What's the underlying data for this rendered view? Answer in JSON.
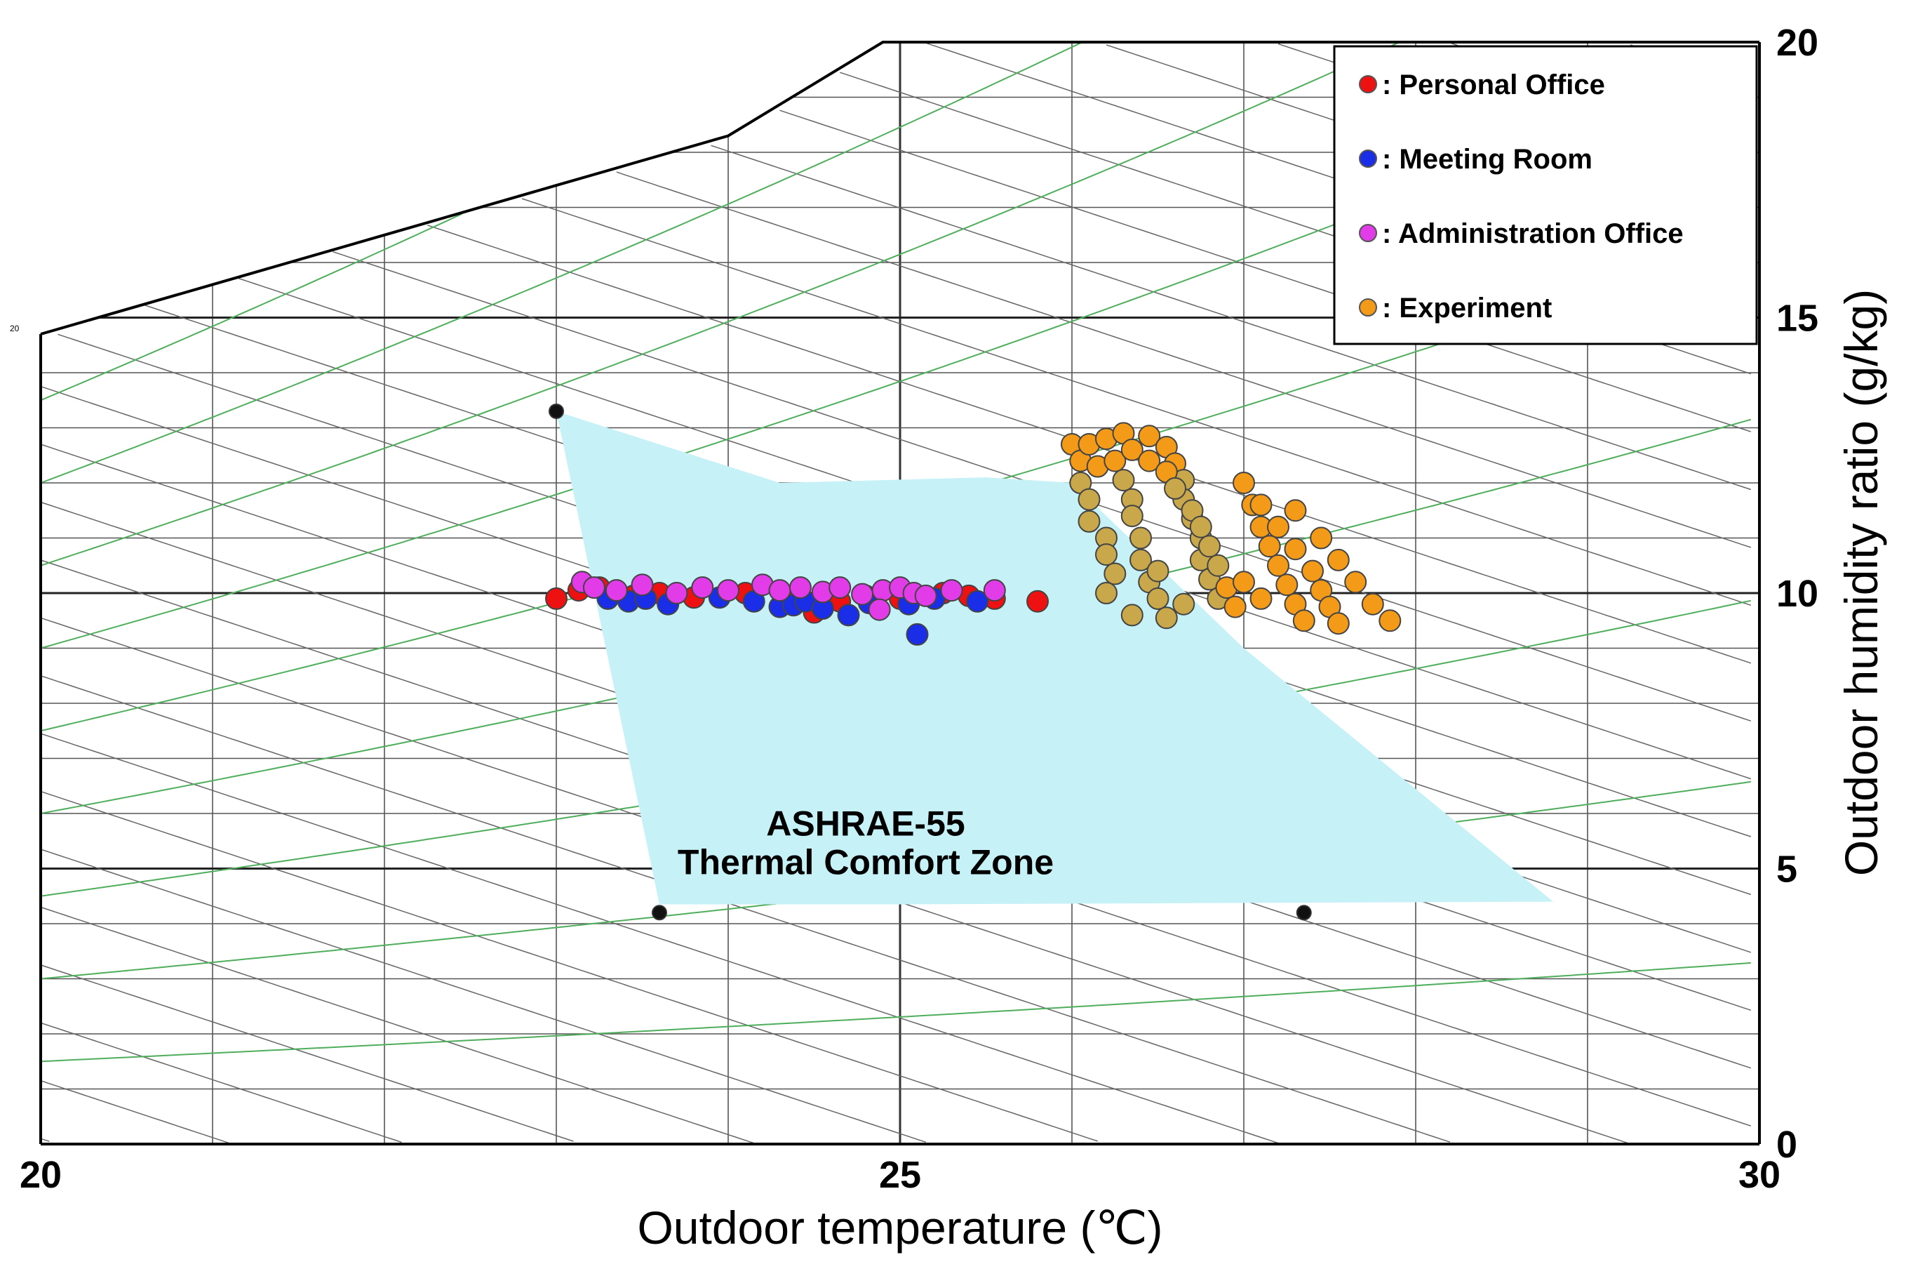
{
  "chart_data": {
    "type": "scatter",
    "chart_kind": "psychrometric",
    "xlabel": "Outdoor temperature (℃)",
    "ylabel": "Outdoor humidity ratio (g/kg)",
    "xlim": [
      20,
      30
    ],
    "ylim": [
      0,
      20
    ],
    "x_ticks": [
      "20",
      "25",
      "30"
    ],
    "y_ticks": [
      "0",
      "5",
      "10",
      "15",
      "20"
    ],
    "corner_label": "20",
    "grid": true,
    "legend_position": "top-right",
    "saturation_curve": [
      [
        20,
        14.7
      ],
      [
        21,
        15.6
      ],
      [
        22,
        16.5
      ],
      [
        23,
        17.4
      ],
      [
        24,
        18.3
      ],
      [
        24.9,
        20
      ]
    ],
    "comfort_zone": {
      "label_line1": "ASHRAE-55",
      "label_line2": "Thermal Comfort Zone",
      "color": "#c6f1f7",
      "vertices": [
        [
          23.0,
          13.3
        ],
        [
          24.3,
          12.0
        ],
        [
          25.5,
          12.1
        ],
        [
          26.0,
          12.0
        ],
        [
          27.0,
          9.0
        ],
        [
          28.8,
          4.4
        ],
        [
          25.0,
          4.35
        ],
        [
          24.2,
          4.35
        ],
        [
          23.6,
          4.35
        ]
      ],
      "corner_markers": [
        [
          23.0,
          13.3
        ],
        [
          23.6,
          4.2
        ],
        [
          27.35,
          4.2
        ]
      ]
    },
    "series": [
      {
        "name": ": Personal Office",
        "color": "#ee1111",
        "points": [
          [
            23.0,
            9.9
          ],
          [
            23.13,
            10.05
          ],
          [
            23.25,
            10.1
          ],
          [
            23.45,
            9.95
          ],
          [
            23.6,
            10.0
          ],
          [
            23.8,
            9.92
          ],
          [
            24.1,
            10.0
          ],
          [
            24.35,
            9.92
          ],
          [
            24.5,
            9.65
          ],
          [
            24.65,
            9.85
          ],
          [
            24.8,
            9.95
          ],
          [
            25.0,
            9.9
          ],
          [
            25.25,
            10.0
          ],
          [
            25.4,
            9.95
          ],
          [
            25.55,
            9.9
          ],
          [
            25.8,
            9.85
          ]
        ]
      },
      {
        "name": ": Meeting Room",
        "color": "#1a2ee8",
        "points": [
          [
            23.3,
            9.9
          ],
          [
            23.42,
            9.85
          ],
          [
            23.52,
            9.9
          ],
          [
            23.65,
            9.8
          ],
          [
            23.95,
            9.92
          ],
          [
            24.15,
            9.85
          ],
          [
            24.3,
            9.75
          ],
          [
            24.38,
            9.78
          ],
          [
            24.45,
            9.85
          ],
          [
            24.55,
            9.72
          ],
          [
            24.7,
            9.6
          ],
          [
            24.82,
            9.82
          ],
          [
            25.05,
            9.8
          ],
          [
            25.1,
            9.25
          ],
          [
            25.2,
            9.9
          ],
          [
            25.45,
            9.85
          ]
        ]
      },
      {
        "name": ": Administration Office",
        "color": "#e23be8",
        "points": [
          [
            23.15,
            10.2
          ],
          [
            23.22,
            10.1
          ],
          [
            23.35,
            10.05
          ],
          [
            23.5,
            10.15
          ],
          [
            23.7,
            10.0
          ],
          [
            23.85,
            10.1
          ],
          [
            24.0,
            10.05
          ],
          [
            24.2,
            10.15
          ],
          [
            24.3,
            10.05
          ],
          [
            24.42,
            10.1
          ],
          [
            24.55,
            10.02
          ],
          [
            24.65,
            10.1
          ],
          [
            24.78,
            9.98
          ],
          [
            24.9,
            10.05
          ],
          [
            25.0,
            10.1
          ],
          [
            25.08,
            10.0
          ],
          [
            25.15,
            9.95
          ],
          [
            25.3,
            10.05
          ],
          [
            25.55,
            10.05
          ],
          [
            24.88,
            9.7
          ]
        ]
      },
      {
        "name": ": Experiment",
        "color": "#f39a18",
        "points": [
          [
            26.0,
            12.7
          ],
          [
            26.05,
            12.4
          ],
          [
            26.05,
            12.0
          ],
          [
            26.1,
            11.7
          ],
          [
            26.1,
            11.3
          ],
          [
            26.2,
            11.0
          ],
          [
            26.2,
            10.7
          ],
          [
            26.25,
            10.35
          ],
          [
            26.1,
            12.7
          ],
          [
            26.15,
            12.3
          ],
          [
            26.2,
            12.8
          ],
          [
            26.25,
            12.4
          ],
          [
            26.3,
            12.05
          ],
          [
            26.35,
            11.7
          ],
          [
            26.35,
            11.4
          ],
          [
            26.4,
            11.0
          ],
          [
            26.4,
            10.6
          ],
          [
            26.45,
            10.2
          ],
          [
            26.5,
            9.9
          ],
          [
            26.55,
            9.55
          ],
          [
            26.3,
            12.9
          ],
          [
            26.35,
            12.6
          ],
          [
            26.45,
            12.85
          ],
          [
            26.55,
            12.65
          ],
          [
            26.6,
            12.35
          ],
          [
            26.65,
            12.05
          ],
          [
            26.65,
            11.7
          ],
          [
            26.7,
            11.35
          ],
          [
            26.75,
            11.0
          ],
          [
            26.75,
            10.6
          ],
          [
            26.8,
            10.25
          ],
          [
            26.85,
            9.9
          ],
          [
            26.45,
            12.4
          ],
          [
            26.55,
            12.2
          ],
          [
            26.6,
            11.9
          ],
          [
            26.7,
            11.5
          ],
          [
            26.75,
            11.2
          ],
          [
            26.8,
            10.85
          ],
          [
            26.85,
            10.5
          ],
          [
            26.9,
            10.1
          ],
          [
            26.95,
            9.75
          ],
          [
            27.0,
            12.0
          ],
          [
            27.05,
            11.6
          ],
          [
            27.1,
            11.2
          ],
          [
            27.15,
            10.85
          ],
          [
            27.2,
            10.5
          ],
          [
            27.25,
            10.15
          ],
          [
            27.3,
            9.8
          ],
          [
            27.35,
            9.5
          ],
          [
            27.1,
            11.6
          ],
          [
            27.2,
            11.2
          ],
          [
            27.3,
            10.8
          ],
          [
            27.4,
            10.4
          ],
          [
            27.45,
            10.05
          ],
          [
            27.5,
            9.75
          ],
          [
            27.55,
            9.45
          ],
          [
            27.3,
            11.5
          ],
          [
            27.45,
            11.0
          ],
          [
            27.55,
            10.6
          ],
          [
            27.65,
            10.2
          ],
          [
            27.75,
            9.8
          ],
          [
            27.85,
            9.5
          ],
          [
            26.2,
            10.0
          ],
          [
            26.35,
            9.6
          ],
          [
            26.5,
            10.4
          ],
          [
            26.65,
            9.8
          ],
          [
            27.0,
            10.2
          ],
          [
            27.1,
            9.9
          ]
        ]
      }
    ],
    "overlap_color": "#c8a84a"
  }
}
